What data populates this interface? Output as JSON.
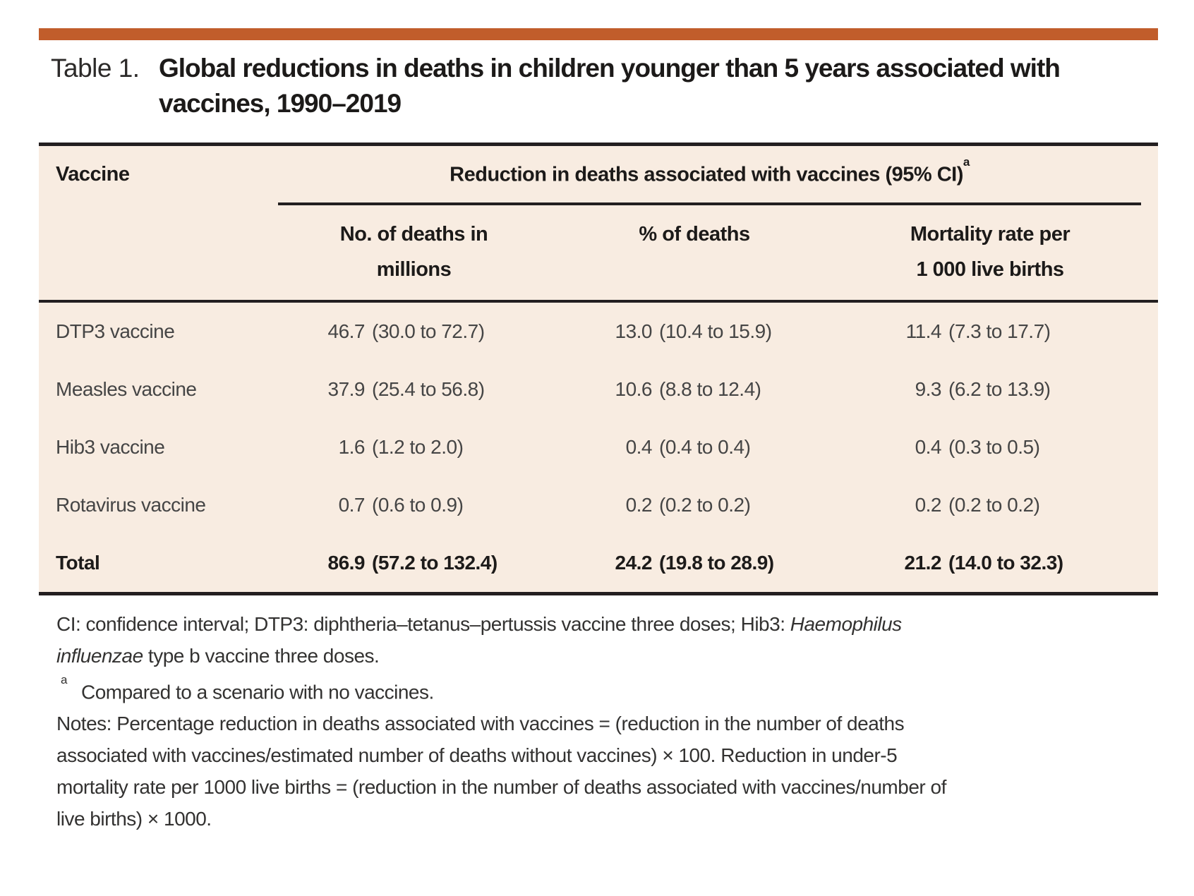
{
  "accent_color": "#c15d2b",
  "table_background": "#f8ece1",
  "title": {
    "label": "Table 1.",
    "line1": "Global reductions in deaths in children younger than 5 years associated with",
    "line2": "vaccines, 1990–2019"
  },
  "table": {
    "col1_header": "Vaccine",
    "span_header": "Reduction in deaths associated with vaccines (95% CI)",
    "span_header_sup": "a",
    "sub_headers": [
      [
        "No. of deaths in",
        "millions"
      ],
      [
        "% of deaths",
        ""
      ],
      [
        "Mortality rate per",
        "1 000 live births"
      ]
    ],
    "rows": [
      {
        "vaccine": "DTP3 vaccine",
        "deaths_millions": {
          "v": "46.7",
          "r": "(30.0 to 72.7)"
        },
        "pct_deaths": {
          "v": "13.0",
          "r": "(10.4 to 15.9)"
        },
        "mortality_rate": {
          "v": "11.4",
          "r": "(7.3 to 17.7)"
        }
      },
      {
        "vaccine": "Measles vaccine",
        "deaths_millions": {
          "v": "37.9",
          "r": "(25.4 to 56.8)"
        },
        "pct_deaths": {
          "v": "10.6",
          "r": "(8.8 to 12.4)"
        },
        "mortality_rate": {
          "v": "9.3",
          "r": "(6.2 to 13.9)"
        }
      },
      {
        "vaccine": "Hib3 vaccine",
        "deaths_millions": {
          "v": "1.6",
          "r": "(1.2 to 2.0)"
        },
        "pct_deaths": {
          "v": "0.4",
          "r": "(0.4 to 0.4)"
        },
        "mortality_rate": {
          "v": "0.4",
          "r": "(0.3 to 0.5)"
        }
      },
      {
        "vaccine": "Rotavirus vaccine",
        "deaths_millions": {
          "v": "0.7",
          "r": "(0.6 to 0.9)"
        },
        "pct_deaths": {
          "v": "0.2",
          "r": "(0.2 to 0.2)"
        },
        "mortality_rate": {
          "v": "0.2",
          "r": "(0.2 to 0.2)"
        }
      },
      {
        "vaccine": "Total",
        "deaths_millions": {
          "v": "86.9",
          "r": "(57.2 to 132.4)"
        },
        "pct_deaths": {
          "v": "24.2",
          "r": "(19.8 to 28.9)"
        },
        "mortality_rate": {
          "v": "21.2",
          "r": "(14.0 to 32.3)"
        }
      }
    ]
  },
  "footnotes": {
    "abbr_line1": "CI: confidence interval; DTP3: diphtheria–tetanus–pertussis vaccine three doses; Hib3: ",
    "abbr_line1_italic": "Haemophilus",
    "abbr_line2_italic": "influenzae",
    "abbr_line2": " type b vaccine three doses.",
    "marker_a": "a",
    "footnote_a": "Compared to a scenario with no vaccines.",
    "notes_lines": [
      "Notes: Percentage reduction in deaths associated with vaccines = (reduction in the number of deaths",
      "associated with vaccines/estimated number of deaths without vaccines) × 100. Reduction in under-5",
      "mortality rate per 1000 live births = (reduction in the number of deaths associated with vaccines/number of",
      "live births) × 1000."
    ]
  }
}
